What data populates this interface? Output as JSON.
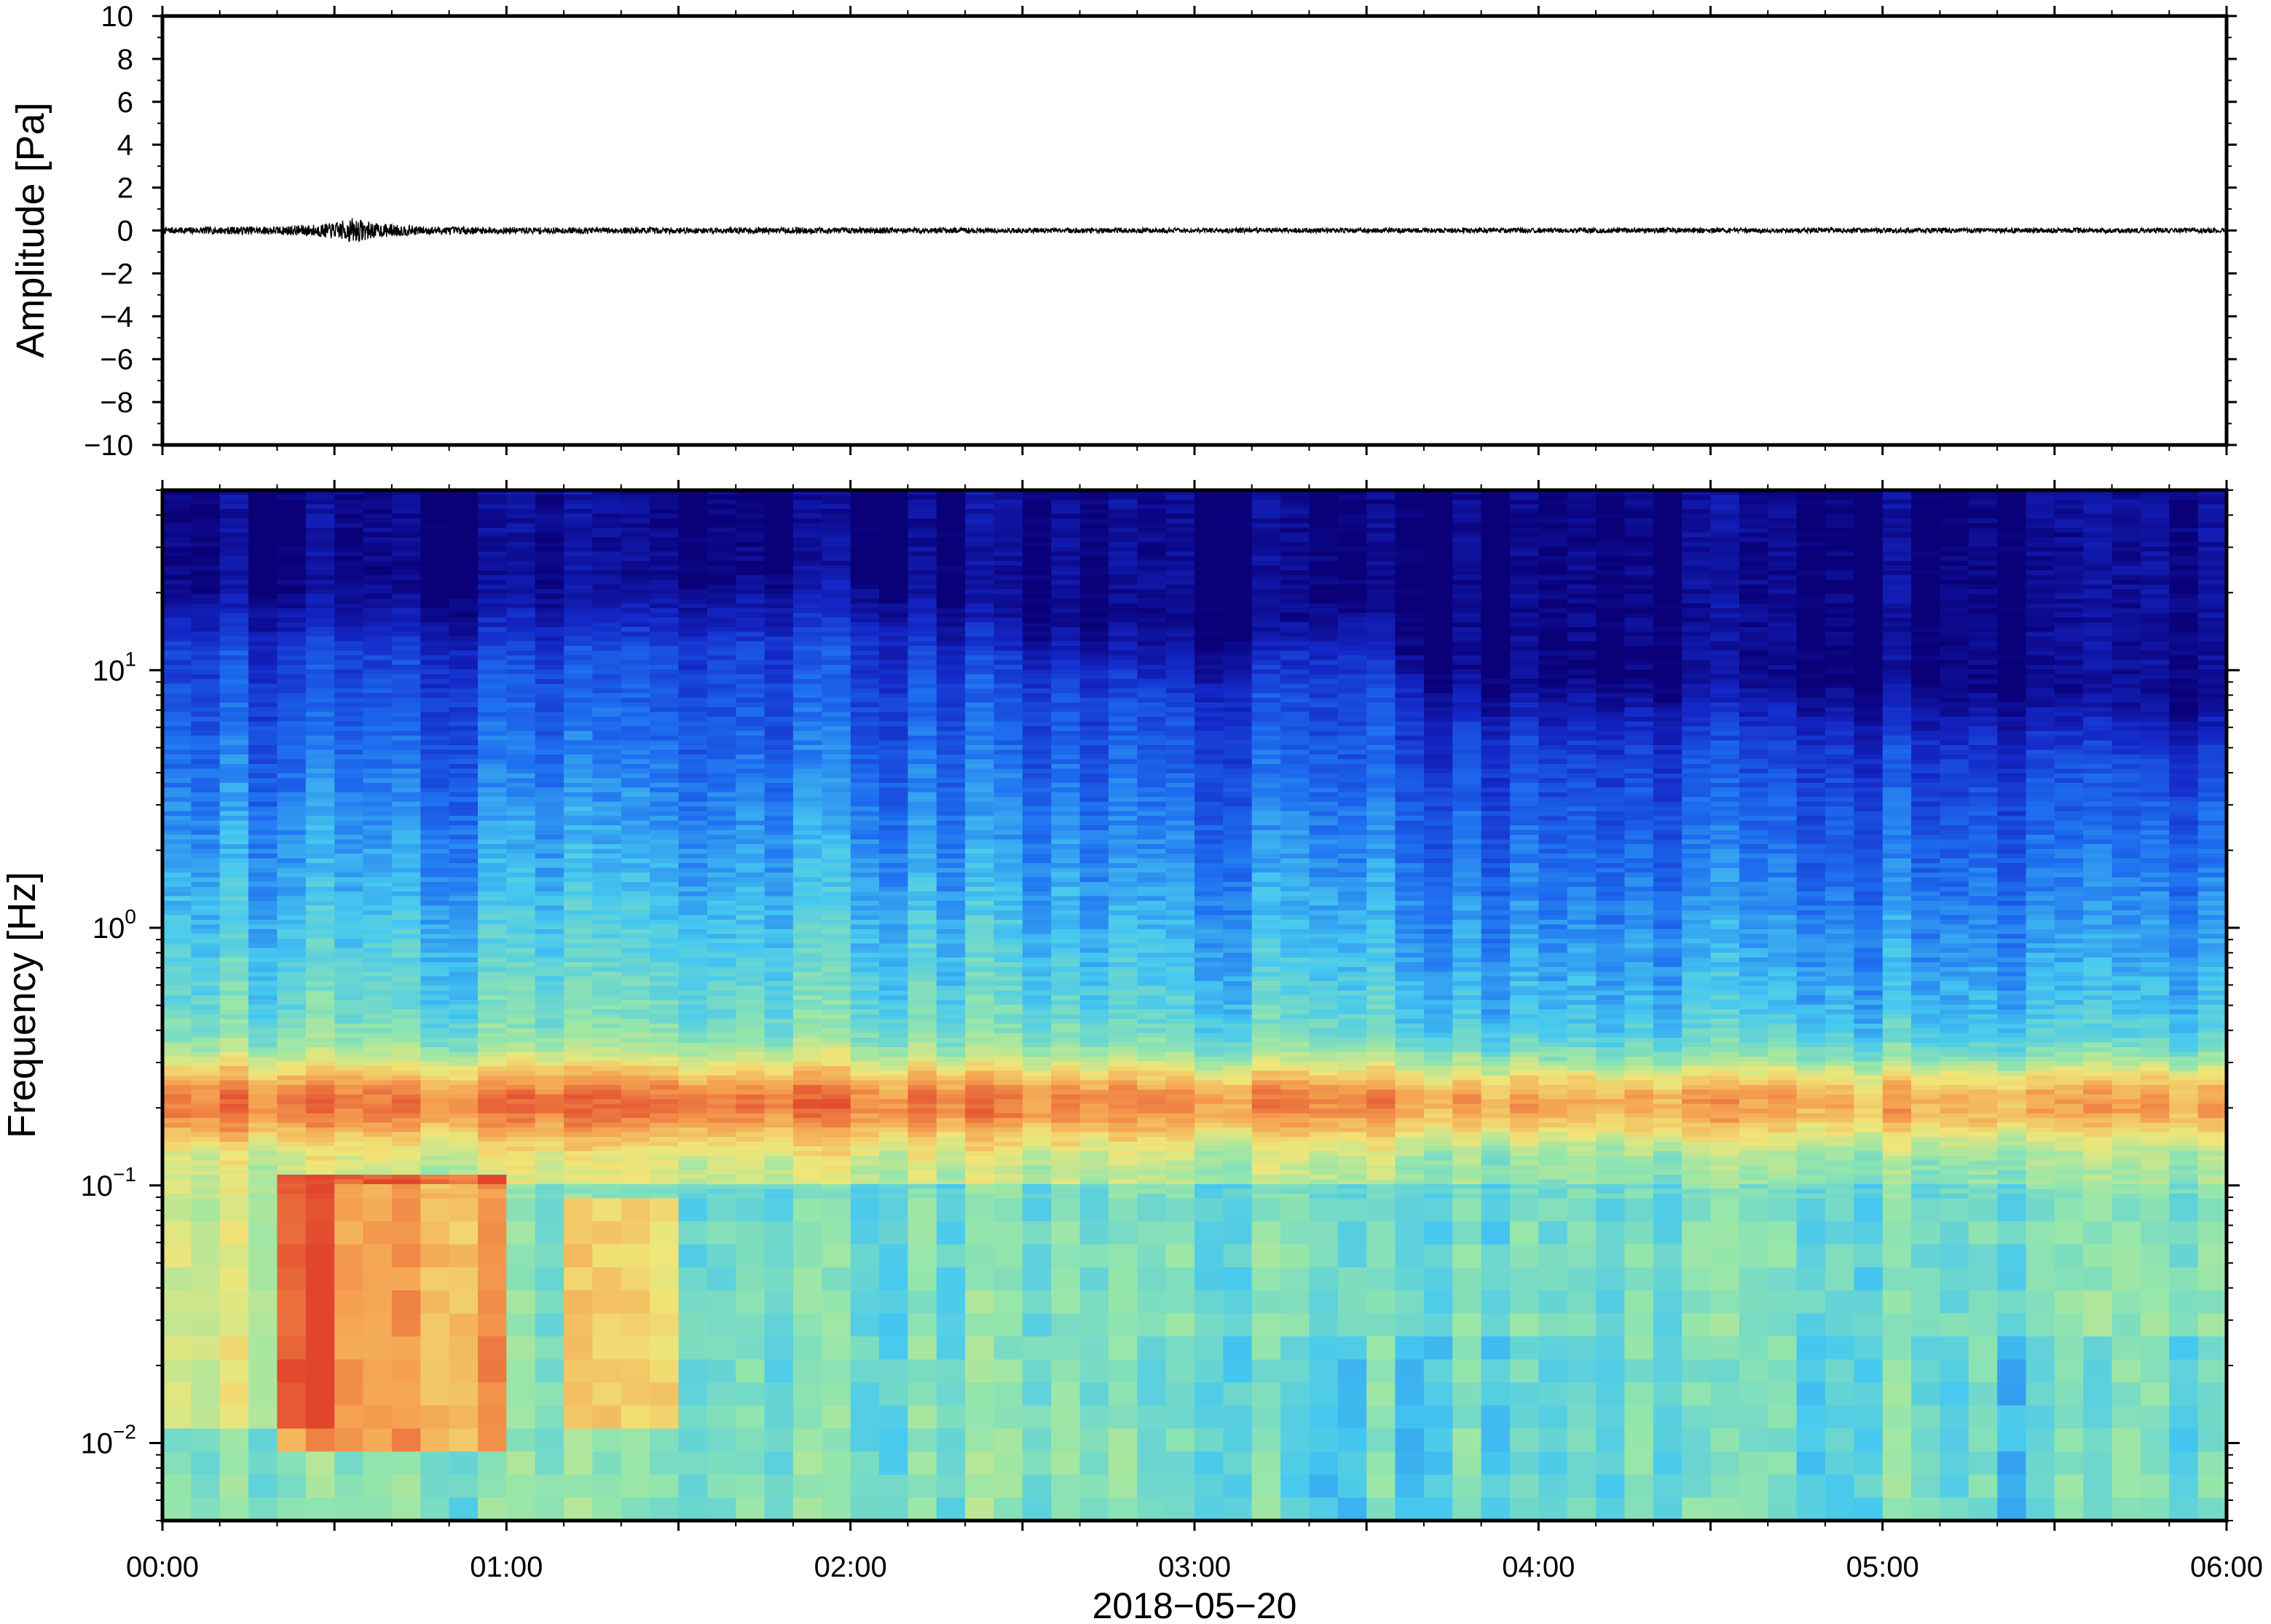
{
  "chart_data": [
    {
      "type": "line",
      "panel": "waveform",
      "ylabel": "Amplitude [Pa]",
      "ylim": [
        -10,
        10
      ],
      "yticks": [
        10,
        8,
        6,
        4,
        2,
        0,
        -2,
        -4,
        -6,
        -8,
        -10
      ],
      "ytick_labels": [
        "10",
        "8",
        "6",
        "4",
        "2",
        "0",
        "−2",
        "−4",
        "−6",
        "−8",
        "−10"
      ],
      "xlim": [
        "00:00",
        "06:00"
      ],
      "series": [
        {
          "x_minutes": [
            0,
            20,
            30,
            33,
            35,
            37,
            40,
            45,
            60,
            90,
            120,
            150,
            180,
            210,
            240,
            270,
            300,
            330,
            360
          ],
          "envelope_pa": [
            0.15,
            0.2,
            0.35,
            0.6,
            0.5,
            0.35,
            0.3,
            0.2,
            0.15,
            0.15,
            0.15,
            0.12,
            0.12,
            0.12,
            0.12,
            0.12,
            0.12,
            0.12,
            0.12
          ]
        }
      ],
      "color": "#000000"
    },
    {
      "type": "heatmap",
      "panel": "spectrogram",
      "ylabel": "Frequency [Hz]",
      "y_scale": "log",
      "ylim": [
        0.005,
        50
      ],
      "yticks": [
        10,
        1,
        0.1,
        0.01
      ],
      "ytick_labels": [
        {
          "base": "10",
          "exp": "1"
        },
        {
          "base": "10",
          "exp": "0"
        },
        {
          "base": "10",
          "exp": "−1"
        },
        {
          "base": "10",
          "exp": "−2"
        }
      ],
      "xlabel": "2018−05−20",
      "xticks": [
        "00:00",
        "01:00",
        "02:00",
        "03:00",
        "04:00",
        "05:00",
        "06:00"
      ],
      "colormap": "jet",
      "colors": {
        "low": "#0a0078",
        "blue": "#1e64e6",
        "cyan": "#46c8f0",
        "green": "#96e6aa",
        "yellow": "#f0e678",
        "orange": "#f5a050",
        "red": "#e65032"
      },
      "features": {
        "microseism_band_hz": [
          0.15,
          0.3
        ],
        "energy_ceiling_hz_by_hour": [
          [
            0,
            12
          ],
          [
            1,
            11
          ],
          [
            2,
            14
          ],
          [
            2.5,
            9
          ],
          [
            3,
            7
          ],
          [
            3.5,
            11
          ],
          [
            3.7,
            6
          ],
          [
            4,
            5
          ],
          [
            5,
            5
          ],
          [
            6,
            4
          ]
        ],
        "low_freq_burst": {
          "time_minutes": [
            30,
            50
          ],
          "freq_hz": [
            0.02,
            0.1
          ]
        }
      }
    }
  ]
}
